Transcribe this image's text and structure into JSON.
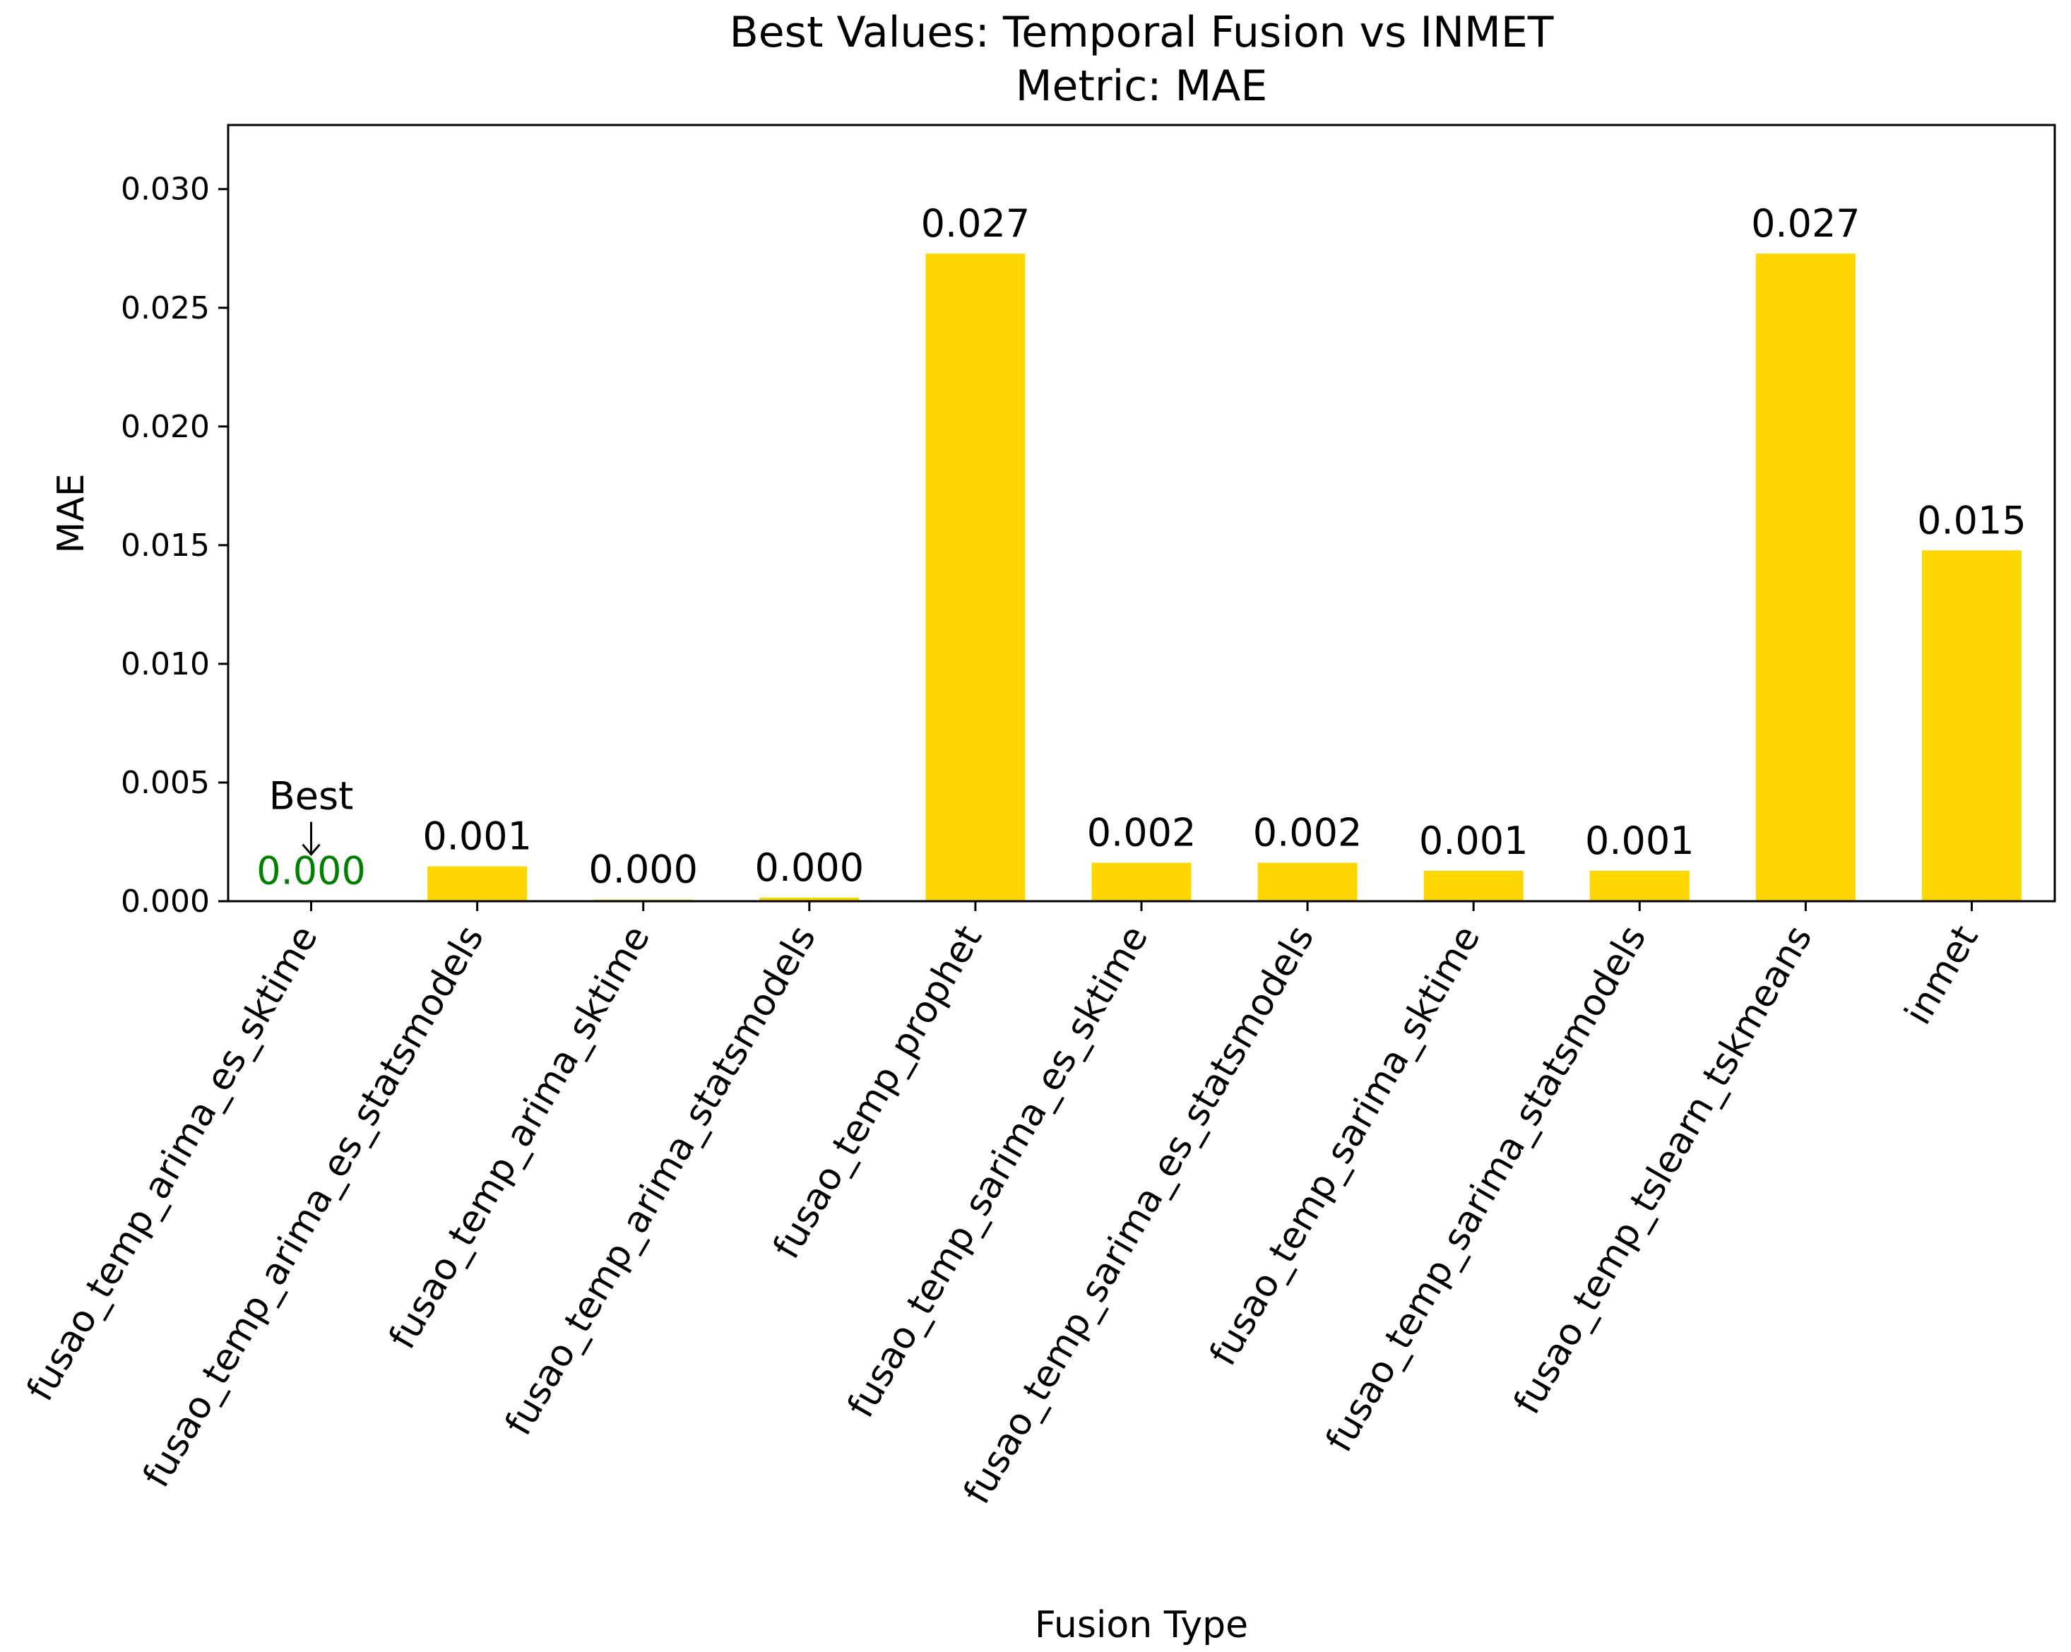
{
  "chart_data": {
    "type": "bar",
    "title": "Best Values: Temporal Fusion vs INMET",
    "subtitle": "Metric: MAE",
    "xlabel": "Fusion Type",
    "ylabel": "MAE",
    "categories": [
      "fusao_temp_arima_es_sktime",
      "fusao_temp_arima_es_statsmodels",
      "fusao_temp_arima_sktime",
      "fusao_temp_arima_statsmodels",
      "fusao_temp_prophet",
      "fusao_temp_sarima_es_sktime",
      "fusao_temp_sarima_es_statsmodels",
      "fusao_temp_sarima_sktime",
      "fusao_temp_sarima_statsmodels",
      "fusao_temp_tslearn_tskmeans",
      "inmet"
    ],
    "values": [
      1e-05,
      0.00147,
      7e-05,
      0.00015,
      0.02728,
      0.00162,
      0.00162,
      0.00128,
      0.00128,
      0.02728,
      0.01478
    ],
    "value_labels": [
      "0.000",
      "0.001",
      "0.000",
      "0.000",
      "0.027",
      "0.002",
      "0.002",
      "0.001",
      "0.001",
      "0.027",
      "0.015"
    ],
    "ylim": [
      0,
      0.0327
    ],
    "yticks": [
      0.0,
      0.005,
      0.01,
      0.015,
      0.02,
      0.025,
      0.03
    ],
    "ytick_labels": [
      "0.000",
      "0.005",
      "0.010",
      "0.015",
      "0.020",
      "0.025",
      "0.030"
    ],
    "grid": false,
    "legend": "none",
    "bar_color": "#FFD700",
    "best_index": 0,
    "best_annotation": "Best",
    "best_label_color": "#008000"
  }
}
